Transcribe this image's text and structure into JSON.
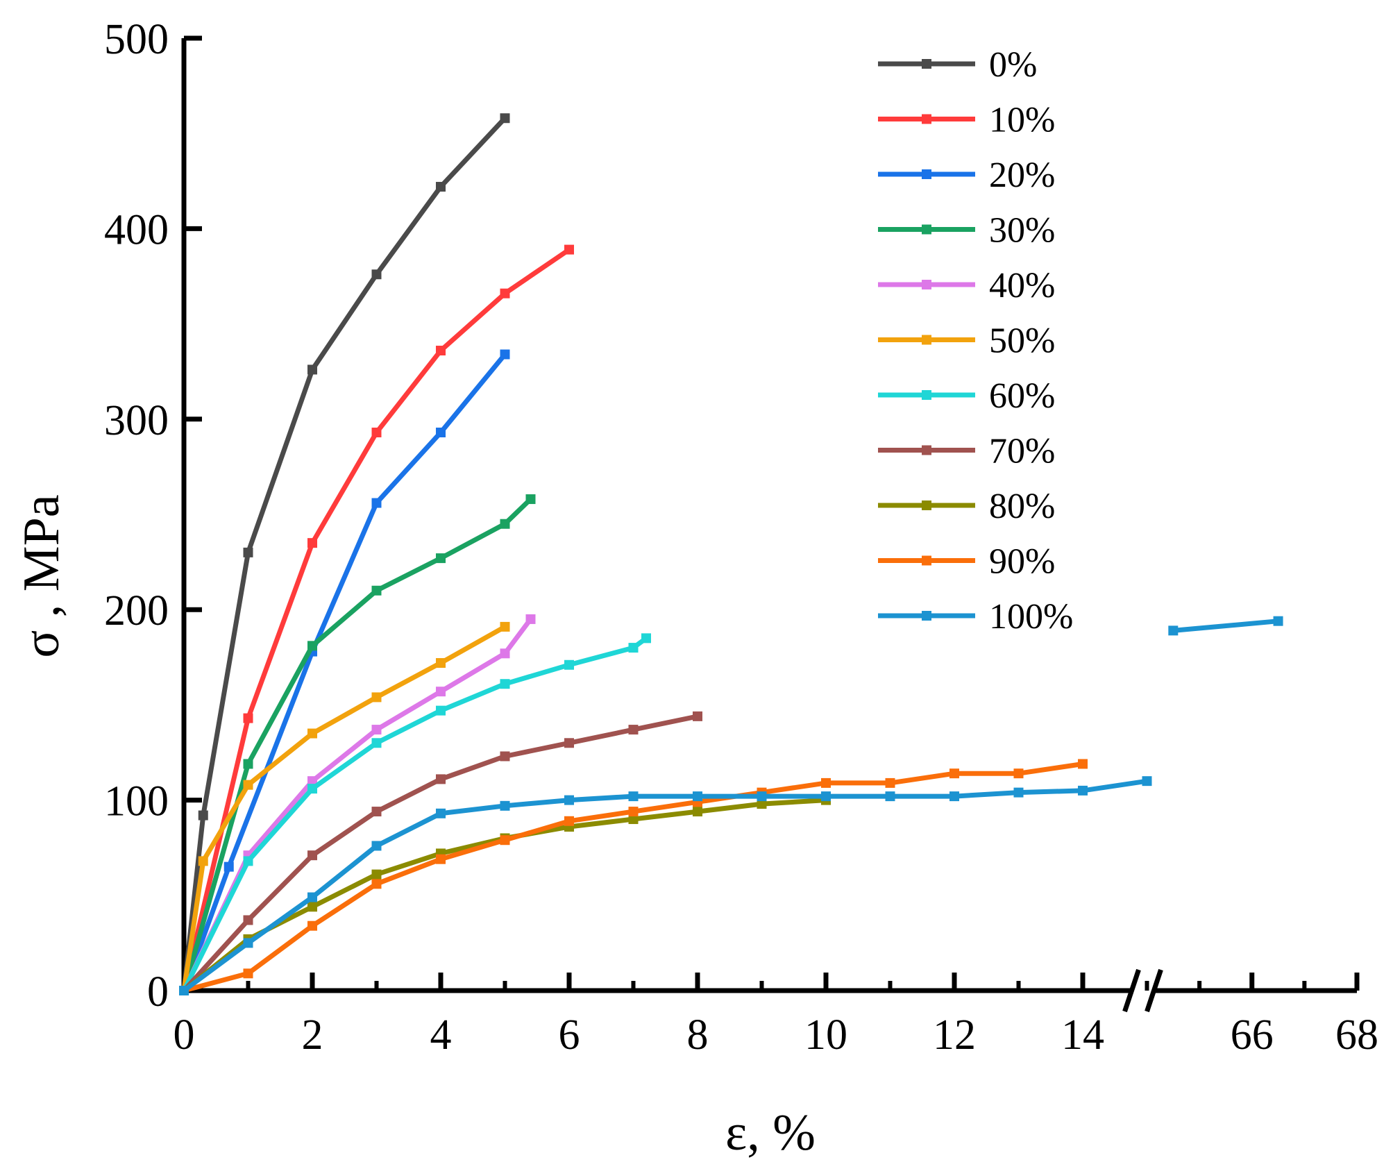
{
  "chart_data": {
    "type": "line",
    "title": "",
    "xlabel": "ε, %",
    "ylabel": "σ , MPa",
    "ylim": [
      0,
      500
    ],
    "xlim": [
      0,
      68
    ],
    "x_axis_break": {
      "from": 15,
      "to": 64
    },
    "x_ticks": [
      "0",
      "2",
      "4",
      "6",
      "8",
      "10",
      "12",
      "14",
      "66",
      "68"
    ],
    "y_ticks": [
      "0",
      "100",
      "200",
      "300",
      "400",
      "500"
    ],
    "legend_position": "top-right",
    "grid": false,
    "series": [
      {
        "name": "0%",
        "color": "#4a4a4a",
        "points": [
          [
            0,
            0
          ],
          [
            0.3,
            92
          ],
          [
            1,
            230
          ],
          [
            2,
            326
          ],
          [
            3,
            376
          ],
          [
            4,
            422
          ],
          [
            5,
            458
          ]
        ]
      },
      {
        "name": "10%",
        "color": "#ff3b3b",
        "points": [
          [
            0,
            0
          ],
          [
            1,
            143
          ],
          [
            2,
            235
          ],
          [
            3,
            293
          ],
          [
            4,
            336
          ],
          [
            5,
            366
          ],
          [
            6,
            389
          ]
        ]
      },
      {
        "name": "20%",
        "color": "#1a73e8",
        "points": [
          [
            0,
            0
          ],
          [
            0.7,
            65
          ],
          [
            2,
            178
          ],
          [
            3,
            256
          ],
          [
            4,
            293
          ],
          [
            5,
            334
          ]
        ]
      },
      {
        "name": "30%",
        "color": "#1aa261",
        "points": [
          [
            0,
            0
          ],
          [
            1,
            119
          ],
          [
            2,
            181
          ],
          [
            3,
            210
          ],
          [
            4,
            227
          ],
          [
            5,
            245
          ],
          [
            5.4,
            258
          ]
        ]
      },
      {
        "name": "40%",
        "color": "#dd78e8",
        "points": [
          [
            0,
            0
          ],
          [
            1,
            71
          ],
          [
            2,
            110
          ],
          [
            3,
            137
          ],
          [
            4,
            157
          ],
          [
            5,
            177
          ],
          [
            5.4,
            195
          ]
        ]
      },
      {
        "name": "50%",
        "color": "#f2a20d",
        "points": [
          [
            0,
            0
          ],
          [
            0.3,
            68
          ],
          [
            1,
            108
          ],
          [
            2,
            135
          ],
          [
            3,
            154
          ],
          [
            4,
            172
          ],
          [
            5,
            191
          ]
        ]
      },
      {
        "name": "60%",
        "color": "#1fd6d6",
        "points": [
          [
            0,
            0
          ],
          [
            1,
            68
          ],
          [
            2,
            106
          ],
          [
            3,
            130
          ],
          [
            4,
            147
          ],
          [
            5,
            161
          ],
          [
            6,
            171
          ],
          [
            7,
            180
          ],
          [
            7.2,
            185
          ]
        ]
      },
      {
        "name": "70%",
        "color": "#a0524f",
        "points": [
          [
            0,
            0
          ],
          [
            1,
            37
          ],
          [
            2,
            71
          ],
          [
            3,
            94
          ],
          [
            4,
            111
          ],
          [
            5,
            123
          ],
          [
            6,
            130
          ],
          [
            7,
            137
          ],
          [
            8,
            144
          ]
        ]
      },
      {
        "name": "80%",
        "color": "#8b8b00",
        "points": [
          [
            0,
            0
          ],
          [
            1,
            27
          ],
          [
            2,
            44
          ],
          [
            3,
            61
          ],
          [
            4,
            72
          ],
          [
            5,
            80
          ],
          [
            6,
            86
          ],
          [
            7,
            90
          ],
          [
            8,
            94
          ],
          [
            9,
            98
          ],
          [
            10,
            100
          ]
        ]
      },
      {
        "name": "90%",
        "color": "#fa6e0a",
        "points": [
          [
            0,
            0
          ],
          [
            1,
            9
          ],
          [
            2,
            34
          ],
          [
            3,
            56
          ],
          [
            4,
            69
          ],
          [
            5,
            79
          ],
          [
            6,
            89
          ],
          [
            7,
            94
          ],
          [
            8,
            99
          ],
          [
            9,
            104
          ],
          [
            10,
            109
          ],
          [
            11,
            109
          ],
          [
            12,
            114
          ],
          [
            13,
            114
          ],
          [
            14,
            119
          ]
        ]
      },
      {
        "name": "100%",
        "color": "#1c93d1",
        "points": [
          [
            0,
            0
          ],
          [
            1,
            25
          ],
          [
            2,
            49
          ],
          [
            3,
            76
          ],
          [
            4,
            93
          ],
          [
            5,
            97
          ],
          [
            6,
            100
          ],
          [
            7,
            102
          ],
          [
            8,
            102
          ],
          [
            9,
            102
          ],
          [
            10,
            102
          ],
          [
            11,
            102
          ],
          [
            12,
            102
          ],
          [
            13,
            104
          ],
          [
            14,
            105
          ],
          [
            15,
            110
          ],
          [
            null,
            null
          ],
          [
            64.5,
            189
          ],
          [
            66.5,
            194
          ]
        ]
      }
    ]
  }
}
